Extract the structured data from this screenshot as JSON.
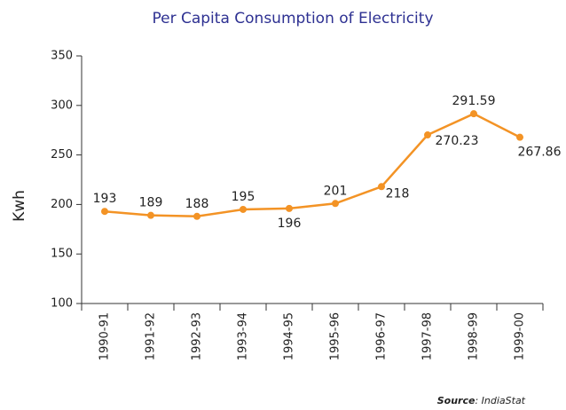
{
  "chart_data": {
    "type": "line",
    "title": "Per Capita Consumption of Electricity",
    "y_label": "Kwh",
    "categories": [
      "1990-91",
      "1991-92",
      "1992-93",
      "1993-94",
      "1994-95",
      "1995-96",
      "1996-97",
      "1997-98",
      "1998-99",
      "1999-00"
    ],
    "series": [
      {
        "name": "Per Capita Consumption",
        "color": "#f39325",
        "values": [
          193,
          189,
          188,
          195,
          196,
          201,
          218,
          270.23,
          291.59,
          267.86
        ]
      }
    ],
    "ylim": [
      100,
      350
    ],
    "yticks": [
      100,
      150,
      200,
      250,
      300,
      350
    ],
    "source": {
      "label": "Source",
      "text": ": IndiaStat"
    }
  }
}
